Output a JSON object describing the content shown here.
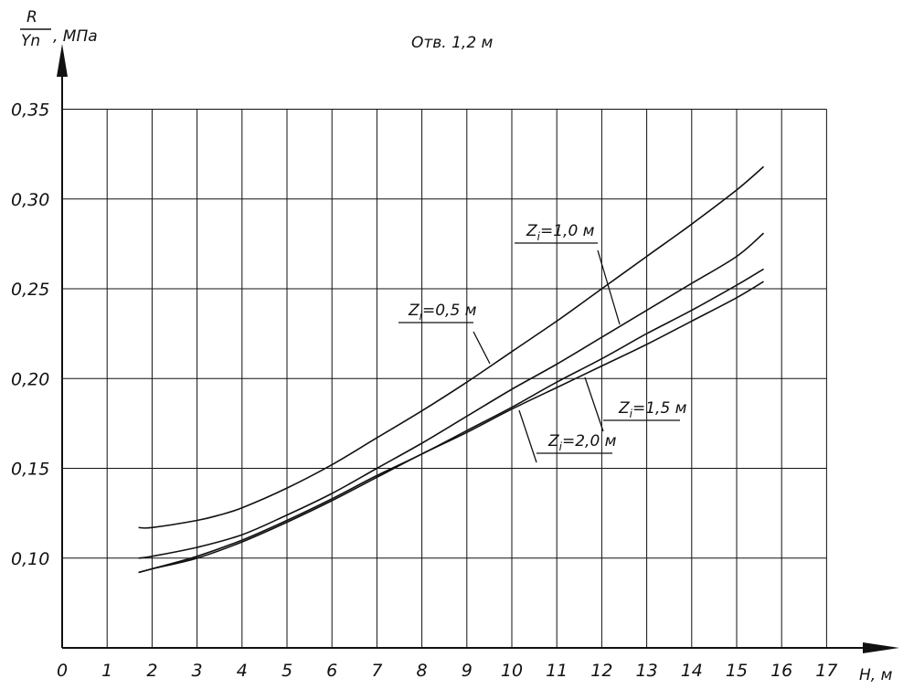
{
  "chart_data": {
    "type": "line",
    "title": "Отв. 1,2 м",
    "xlabel": "H, м",
    "ylabel_num": "R",
    "ylabel_den": "Yn",
    "ylabel_unit": ", МПа",
    "xlim": [
      0,
      17
    ],
    "ylim": [
      0.05,
      0.35
    ],
    "x_ticks": [
      "0",
      "1",
      "2",
      "3",
      "4",
      "5",
      "6",
      "7",
      "8",
      "9",
      "10",
      "11",
      "12",
      "13",
      "14",
      "15",
      "16",
      "17"
    ],
    "y_ticks": [
      {
        "value": 0.1,
        "label": "0,10"
      },
      {
        "value": 0.15,
        "label": "0,15"
      },
      {
        "value": 0.2,
        "label": "0,20"
      },
      {
        "value": 0.25,
        "label": "0,25"
      },
      {
        "value": 0.3,
        "label": "0,30"
      },
      {
        "value": 0.35,
        "label": "0,35"
      }
    ],
    "grid": true,
    "series": [
      {
        "name": "Zi=0,5 м",
        "label_pre": "Z",
        "label_sub": "i",
        "label_post": "=0,5 м",
        "x": [
          1.7,
          2,
          3,
          3.5,
          4,
          5,
          6,
          7,
          8,
          9,
          10,
          11,
          12,
          13,
          14,
          15,
          15.6
        ],
        "y": [
          0.117,
          0.117,
          0.121,
          0.124,
          0.128,
          0.139,
          0.152,
          0.167,
          0.182,
          0.198,
          0.215,
          0.232,
          0.25,
          0.268,
          0.286,
          0.305,
          0.318
        ]
      },
      {
        "name": "Zi=1,0 м",
        "label_pre": "Z",
        "label_sub": "i",
        "label_post": "=1,0 м",
        "x": [
          1.7,
          2,
          3,
          4,
          5,
          6,
          7,
          8,
          9,
          10,
          11,
          12,
          13,
          14,
          15,
          15.6
        ],
        "y": [
          0.1,
          0.101,
          0.106,
          0.113,
          0.124,
          0.136,
          0.15,
          0.164,
          0.179,
          0.194,
          0.208,
          0.223,
          0.238,
          0.253,
          0.268,
          0.281
        ]
      },
      {
        "name": "Zi=1,5 м",
        "label_pre": "Z",
        "label_sub": "i",
        "label_post": "=1,5 м",
        "x": [
          1.7,
          2,
          3,
          4,
          5,
          6,
          7,
          8,
          9,
          10,
          11,
          12,
          13,
          14,
          15,
          15.6
        ],
        "y": [
          0.092,
          0.094,
          0.101,
          0.11,
          0.121,
          0.133,
          0.146,
          0.158,
          0.171,
          0.184,
          0.198,
          0.211,
          0.225,
          0.238,
          0.252,
          0.261
        ]
      },
      {
        "name": "Zi=2,0 м",
        "label_pre": "Z",
        "label_sub": "i",
        "label_post": "=2,0 м",
        "x": [
          1.7,
          2,
          3,
          4,
          5,
          6,
          7,
          8,
          9,
          10,
          11,
          12,
          13,
          14,
          15,
          15.6
        ],
        "y": [
          0.092,
          0.094,
          0.1,
          0.109,
          0.12,
          0.132,
          0.145,
          0.158,
          0.17,
          0.183,
          0.195,
          0.207,
          0.219,
          0.232,
          0.245,
          0.254
        ]
      }
    ]
  }
}
